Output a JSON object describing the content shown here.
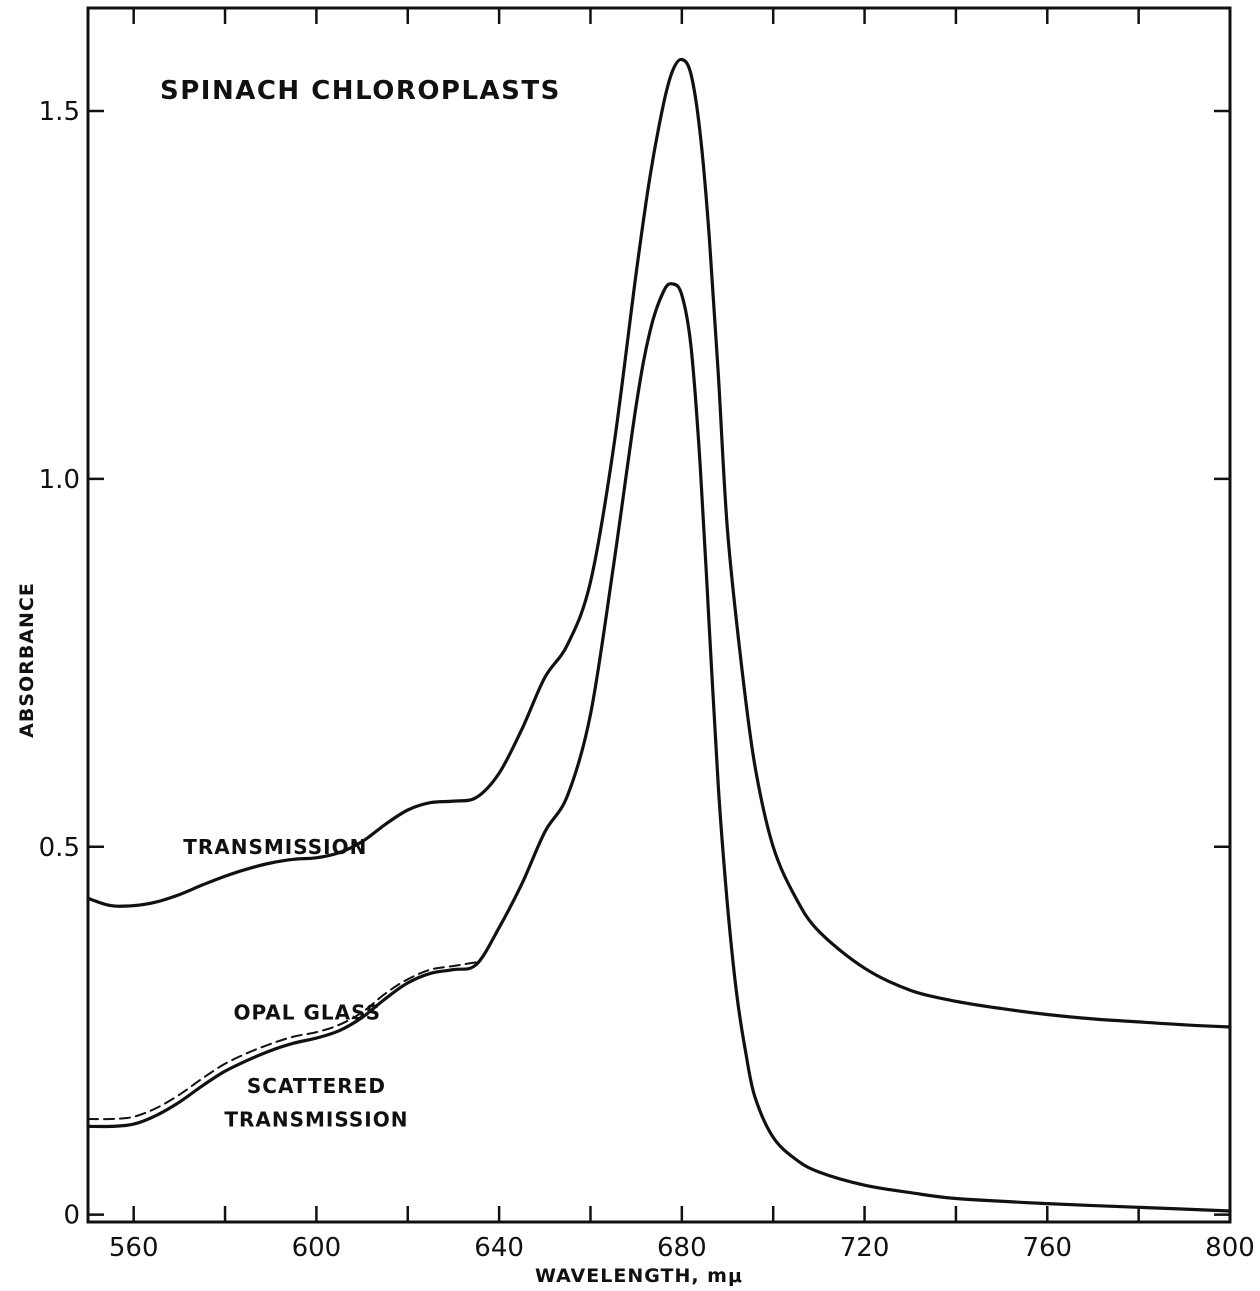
{
  "chart_data": {
    "type": "line",
    "title": "SPINACH CHLOROPLASTS",
    "xlabel": "WAVELENGTH, mμ",
    "ylabel": "ABSORBANCE",
    "xlim": [
      550,
      800
    ],
    "ylim": [
      -0.01,
      1.64
    ],
    "x_ticks": [
      560,
      600,
      640,
      680,
      720,
      760,
      800
    ],
    "x_minor_ticks": [
      580,
      620,
      660,
      700,
      740,
      780
    ],
    "y_ticks": [
      {
        "value": 0,
        "label": "0"
      },
      {
        "value": 0.5,
        "label": "0.5"
      },
      {
        "value": 1.0,
        "label": "1.0"
      },
      {
        "value": 1.5,
        "label": "1.5"
      }
    ],
    "grid": false,
    "annotations": [
      {
        "text": "TRANSMISSION",
        "x": 591,
        "y": 0.49
      },
      {
        "text": "OPAL GLASS",
        "x": 598,
        "y": 0.265
      },
      {
        "text": "SCATTERED",
        "x": 600,
        "y": 0.165
      },
      {
        "text": "TRANSMISSION",
        "x": 600,
        "y": 0.12
      }
    ],
    "series": [
      {
        "key": "transmission",
        "style": "solid",
        "x": [
          550,
          555,
          560,
          565,
          570,
          575,
          580,
          585,
          590,
          595,
          600,
          605,
          610,
          615,
          620,
          625,
          630,
          635,
          640,
          645,
          650,
          655,
          660,
          665,
          670,
          673,
          676,
          678,
          680,
          682,
          684,
          686,
          688,
          690,
          693,
          696,
          700,
          705,
          710,
          720,
          730,
          740,
          750,
          760,
          770,
          780,
          790,
          800
        ],
        "y": [
          0.43,
          0.42,
          0.42,
          0.425,
          0.435,
          0.448,
          0.46,
          0.47,
          0.478,
          0.483,
          0.485,
          0.492,
          0.507,
          0.53,
          0.55,
          0.56,
          0.562,
          0.567,
          0.6,
          0.66,
          0.73,
          0.775,
          0.86,
          1.04,
          1.28,
          1.41,
          1.51,
          1.555,
          1.57,
          1.55,
          1.47,
          1.33,
          1.14,
          0.93,
          0.75,
          0.61,
          0.5,
          0.43,
          0.385,
          0.335,
          0.305,
          0.29,
          0.28,
          0.272,
          0.266,
          0.262,
          0.258,
          0.255
        ]
      },
      {
        "key": "opal-glass",
        "style": "dashed",
        "x": [
          550,
          555,
          560,
          565,
          570,
          575,
          580,
          585,
          590,
          595,
          600,
          605,
          610,
          615,
          620,
          625,
          630,
          635
        ],
        "y": [
          0.13,
          0.13,
          0.133,
          0.145,
          0.163,
          0.185,
          0.205,
          0.22,
          0.232,
          0.242,
          0.248,
          0.258,
          0.275,
          0.3,
          0.32,
          0.333,
          0.338,
          0.343
        ]
      },
      {
        "key": "scattered-transmission",
        "style": "solid",
        "x": [
          550,
          555,
          560,
          565,
          570,
          575,
          580,
          585,
          590,
          595,
          600,
          605,
          610,
          615,
          620,
          625,
          630,
          635,
          640,
          645,
          650,
          655,
          660,
          665,
          670,
          673,
          676,
          678,
          680,
          682,
          684,
          686,
          688,
          690,
          692,
          694,
          696,
          700,
          705,
          710,
          720,
          730,
          740,
          760,
          780,
          800
        ],
        "y": [
          0.12,
          0.12,
          0.123,
          0.135,
          0.153,
          0.175,
          0.195,
          0.21,
          0.223,
          0.233,
          0.24,
          0.25,
          0.268,
          0.293,
          0.315,
          0.328,
          0.333,
          0.34,
          0.39,
          0.45,
          0.52,
          0.57,
          0.68,
          0.88,
          1.1,
          1.2,
          1.255,
          1.265,
          1.25,
          1.18,
          1.02,
          0.8,
          0.58,
          0.42,
          0.3,
          0.22,
          0.16,
          0.105,
          0.075,
          0.058,
          0.04,
          0.03,
          0.022,
          0.015,
          0.01,
          0.005
        ]
      }
    ]
  }
}
